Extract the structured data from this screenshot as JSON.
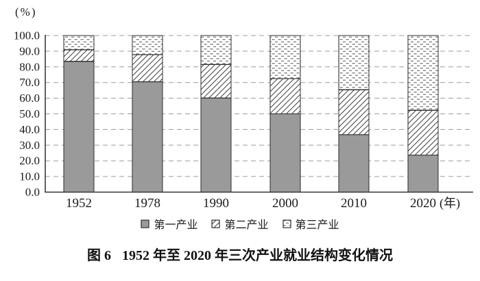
{
  "chart_data": {
    "type": "bar",
    "stacked": true,
    "title": "",
    "categories": [
      "1952",
      "1978",
      "1990",
      "2000",
      "2010",
      "2020"
    ],
    "series": [
      {
        "name": "第一产业",
        "pattern": "solid-gray",
        "values": [
          83.5,
          70.5,
          60.1,
          50.0,
          36.7,
          23.6
        ]
      },
      {
        "name": "第二产业",
        "pattern": "diagonal-hatch",
        "values": [
          7.4,
          17.3,
          21.4,
          22.5,
          28.7,
          28.7
        ]
      },
      {
        "name": "第三产业",
        "pattern": "dash-bricks",
        "values": [
          9.1,
          12.2,
          18.5,
          27.5,
          34.6,
          47.7
        ]
      }
    ],
    "ylim": [
      0,
      100
    ],
    "yticks": [
      "0.0",
      "10.0",
      "20.0",
      "30.0",
      "40.0",
      "50.0",
      "60.0",
      "70.0",
      "80.0",
      "90.0",
      "100.0"
    ],
    "y_axis_unit": "(%)",
    "x_axis_unit": "(年)",
    "grid": "dashed-horizontal",
    "legend_position": "bottom"
  },
  "caption": {
    "prefix": "图 6",
    "text": "1952 年至 2020 年三次产业就业结构变化情况"
  },
  "colors": {
    "bar_gray": "#9a9a9a",
    "bar_border": "#2b2b2b",
    "hatch_line": "#3f3f3f",
    "brick_dash": "#787878",
    "grid": "#9c9c9c",
    "axis": "#3a3a3a",
    "text": "#1a1a1a"
  }
}
